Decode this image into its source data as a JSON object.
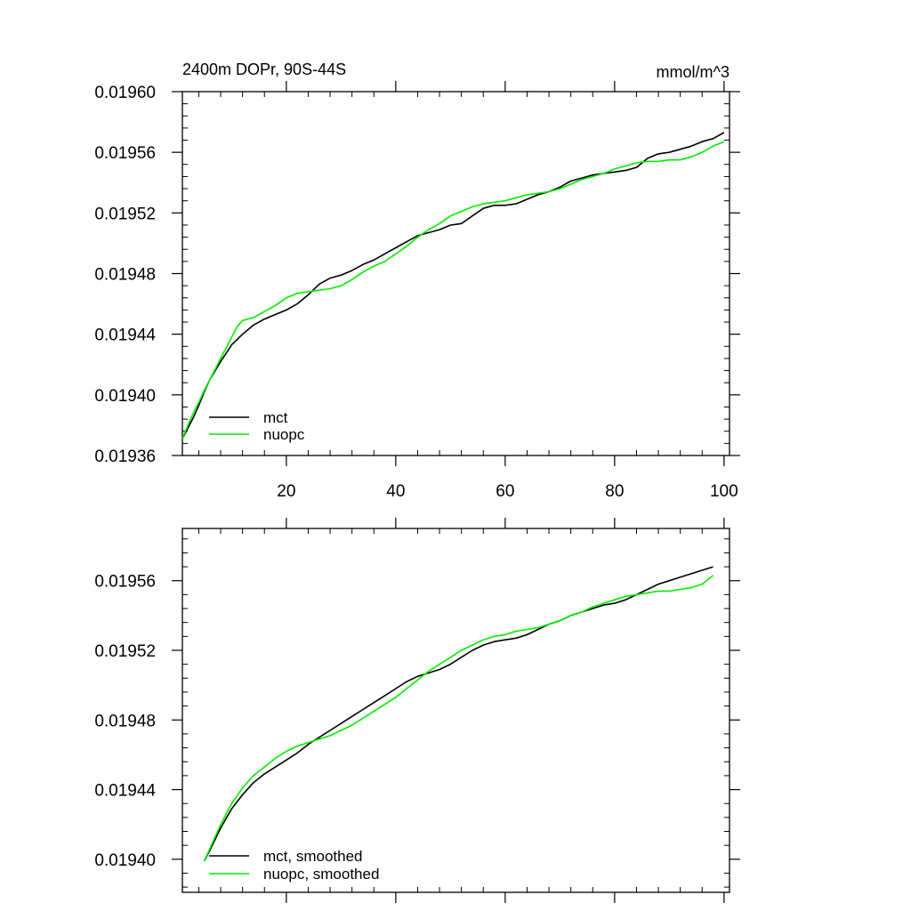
{
  "chart_data": [
    {
      "type": "line",
      "title": "2400m DOPr, 90S-44S",
      "units": "mmol/m^3",
      "xlim": [
        1,
        101
      ],
      "ylim": [
        0.01936,
        0.0196
      ],
      "x_major_ticks": [
        20,
        40,
        60,
        80,
        100
      ],
      "x_tick_labels": [
        "20",
        "40",
        "60",
        "80",
        "100"
      ],
      "y_major_ticks": [
        0.0196,
        0.01956,
        0.01952,
        0.01948,
        0.01944,
        0.0194,
        0.01936
      ],
      "y_tick_labels": [
        "0.01960",
        "0.01956",
        "0.01952",
        "0.01948",
        "0.01944",
        "0.01940",
        "0.01936"
      ],
      "legend_position": "bottom-left",
      "series": [
        {
          "name": "mct",
          "color": "#000000",
          "x": [
            1,
            2,
            3,
            4,
            5,
            6,
            8,
            10,
            12,
            14,
            16,
            18,
            20,
            22,
            24,
            26,
            28,
            30,
            32,
            34,
            36,
            38,
            40,
            42,
            44,
            46,
            48,
            50,
            52,
            54,
            56,
            58,
            60,
            62,
            64,
            66,
            68,
            70,
            72,
            74,
            76,
            78,
            80,
            82,
            84,
            86,
            88,
            90,
            92,
            94,
            96,
            98,
            100
          ],
          "y": [
            0.019371,
            0.019378,
            0.019385,
            0.019393,
            0.019402,
            0.01941,
            0.019422,
            0.019433,
            0.01944,
            0.019446,
            0.01945,
            0.019453,
            0.019456,
            0.01946,
            0.019466,
            0.019473,
            0.019477,
            0.019479,
            0.019482,
            0.019486,
            0.019489,
            0.019493,
            0.019497,
            0.019501,
            0.019505,
            0.019507,
            0.019509,
            0.019512,
            0.019513,
            0.019518,
            0.019523,
            0.019525,
            0.019525,
            0.019526,
            0.019529,
            0.019532,
            0.019534,
            0.019537,
            0.019541,
            0.019543,
            0.019545,
            0.019546,
            0.019547,
            0.019548,
            0.01955,
            0.019556,
            0.019559,
            0.01956,
            0.019562,
            0.019564,
            0.019567,
            0.019569,
            0.019573
          ]
        },
        {
          "name": "nuopc",
          "color": "#00ee00",
          "x": [
            1,
            2,
            3,
            4,
            5,
            6,
            8,
            10,
            11,
            12,
            14,
            16,
            18,
            20,
            22,
            24,
            26,
            28,
            30,
            32,
            34,
            36,
            38,
            40,
            42,
            44,
            46,
            48,
            50,
            52,
            54,
            56,
            58,
            60,
            62,
            64,
            66,
            68,
            70,
            72,
            74,
            76,
            78,
            80,
            82,
            84,
            86,
            88,
            90,
            92,
            94,
            96,
            98,
            100
          ],
          "y": [
            0.019371,
            0.01938,
            0.019388,
            0.019395,
            0.019403,
            0.01941,
            0.019424,
            0.019438,
            0.019445,
            0.019449,
            0.019451,
            0.019455,
            0.019459,
            0.019464,
            0.019467,
            0.019468,
            0.019469,
            0.01947,
            0.019472,
            0.019476,
            0.019481,
            0.019485,
            0.019488,
            0.019493,
            0.019498,
            0.019504,
            0.019509,
            0.019513,
            0.019518,
            0.019521,
            0.019524,
            0.019526,
            0.019527,
            0.019528,
            0.01953,
            0.019532,
            0.019533,
            0.019534,
            0.019536,
            0.019539,
            0.019542,
            0.019544,
            0.019546,
            0.019549,
            0.019551,
            0.019553,
            0.019554,
            0.019554,
            0.019555,
            0.019555,
            0.019557,
            0.01956,
            0.019564,
            0.019567
          ]
        }
      ]
    },
    {
      "type": "line",
      "xlim": [
        1,
        101
      ],
      "ylim": [
        0.019381,
        0.01959
      ],
      "x_major_ticks": [
        20,
        40,
        60,
        80,
        100
      ],
      "y_major_ticks": [
        0.01956,
        0.01952,
        0.01948,
        0.01944,
        0.0194
      ],
      "y_tick_labels": [
        "0.01956",
        "0.01952",
        "0.01948",
        "0.01944",
        "0.01940"
      ],
      "legend_position": "bottom-left",
      "series": [
        {
          "name": "mct, smoothed",
          "color": "#000000",
          "x": [
            5,
            6,
            8,
            10,
            12,
            14,
            16,
            18,
            20,
            22,
            24,
            26,
            28,
            30,
            32,
            34,
            36,
            38,
            40,
            42,
            44,
            46,
            48,
            50,
            52,
            54,
            56,
            58,
            60,
            62,
            64,
            66,
            68,
            70,
            72,
            74,
            76,
            78,
            80,
            82,
            84,
            86,
            88,
            90,
            92,
            94,
            96,
            98
          ],
          "y": [
            0.019399,
            0.019405,
            0.019418,
            0.019429,
            0.019437,
            0.019444,
            0.019449,
            0.019453,
            0.019457,
            0.019461,
            0.019466,
            0.01947,
            0.019474,
            0.019478,
            0.019482,
            0.019486,
            0.01949,
            0.019494,
            0.019498,
            0.019502,
            0.019505,
            0.019507,
            0.019509,
            0.019512,
            0.019516,
            0.01952,
            0.019523,
            0.019525,
            0.019526,
            0.019527,
            0.019529,
            0.019532,
            0.019535,
            0.019537,
            0.01954,
            0.019542,
            0.019544,
            0.019546,
            0.019547,
            0.019549,
            0.019552,
            0.019555,
            0.019558,
            0.01956,
            0.019562,
            0.019564,
            0.019566,
            0.019568
          ]
        },
        {
          "name": "nuopc, smoothed",
          "color": "#00ee00",
          "x": [
            5,
            6,
            8,
            10,
            12,
            14,
            16,
            18,
            20,
            22,
            24,
            26,
            28,
            30,
            32,
            34,
            36,
            38,
            40,
            42,
            44,
            46,
            48,
            50,
            52,
            54,
            56,
            58,
            60,
            62,
            64,
            66,
            68,
            70,
            72,
            74,
            76,
            78,
            80,
            82,
            84,
            86,
            88,
            90,
            92,
            94,
            96,
            98
          ],
          "y": [
            0.019399,
            0.019406,
            0.01942,
            0.019432,
            0.019441,
            0.019448,
            0.019453,
            0.019458,
            0.019462,
            0.019465,
            0.019467,
            0.019469,
            0.019471,
            0.019474,
            0.019477,
            0.019481,
            0.019485,
            0.019489,
            0.019493,
            0.019498,
            0.019503,
            0.019508,
            0.019512,
            0.019516,
            0.01952,
            0.019523,
            0.019526,
            0.019528,
            0.019529,
            0.019531,
            0.019532,
            0.019533,
            0.019535,
            0.019537,
            0.01954,
            0.019542,
            0.019545,
            0.019547,
            0.019549,
            0.019551,
            0.019552,
            0.019553,
            0.019554,
            0.019554,
            0.019555,
            0.019556,
            0.019558,
            0.019563
          ]
        }
      ]
    }
  ]
}
